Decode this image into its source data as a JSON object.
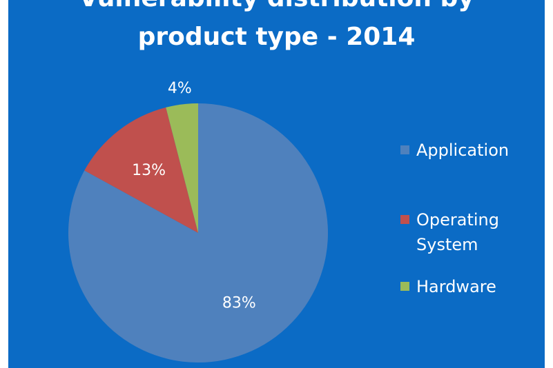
{
  "chart_data": {
    "type": "pie",
    "title_lines": [
      "Vulnerability distribution by",
      "product type - 2014"
    ],
    "categories": [
      "Application",
      "Operating System",
      "Hardware"
    ],
    "values": [
      83,
      13,
      4
    ],
    "data_labels": [
      "83%",
      "13%",
      "4%"
    ],
    "legend_lines": [
      [
        "Application"
      ],
      [
        "Operating",
        "System"
      ],
      [
        "Hardware"
      ]
    ],
    "legend_position": "right",
    "colors": [
      "#4f81bd",
      "#c0504d",
      "#9bbb59"
    ],
    "background": "#0b6bc5"
  }
}
